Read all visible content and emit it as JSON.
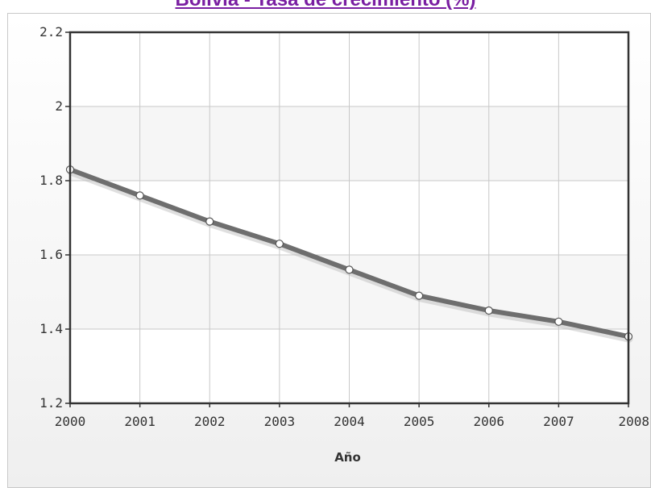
{
  "chart_data": {
    "type": "line",
    "title": "Bolivia - Tasa de crecimiento (%)",
    "xlabel": "Año",
    "ylabel": "",
    "categories": [
      "2000",
      "2001",
      "2002",
      "2003",
      "2004",
      "2005",
      "2006",
      "2007",
      "2008"
    ],
    "series": [
      {
        "values": [
          1.83,
          1.76,
          1.69,
          1.63,
          1.56,
          1.49,
          1.45,
          1.42,
          1.38
        ]
      }
    ],
    "ylim": [
      1.2,
      2.2
    ],
    "yticks": [
      "1.2",
      "1.4",
      "1.6",
      "1.8",
      "2",
      "2.2"
    ],
    "grid": true,
    "legend": "none",
    "colors": {
      "line": "#6e6e6e",
      "marker_fill": "#ffffff",
      "plot_bg_band": "#f6f6f6",
      "axis": "#333333",
      "title": "#7a1fa2"
    }
  }
}
